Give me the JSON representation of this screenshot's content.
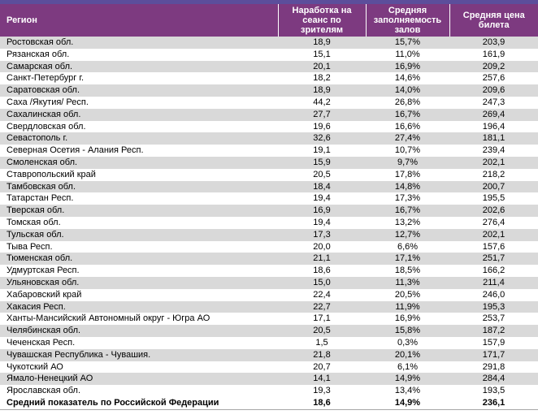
{
  "chart_data": {
    "type": "table",
    "title": "",
    "columns": [
      "Регион",
      "Наработка на сеанс по зрителям",
      "Средняя заполняемость залов",
      "Средняя цена билета"
    ],
    "rows": [
      [
        "Ростовская обл.",
        "18,9",
        "15,7%",
        "203,9"
      ],
      [
        "Рязанская обл.",
        "15,1",
        "11,0%",
        "161,9"
      ],
      [
        "Самарская обл.",
        "20,1",
        "16,9%",
        "209,2"
      ],
      [
        "Санкт-Петербург г.",
        "18,2",
        "14,6%",
        "257,6"
      ],
      [
        "Саратовская обл.",
        "18,9",
        "14,0%",
        "209,6"
      ],
      [
        "Саха /Якутия/ Респ.",
        "44,2",
        "26,8%",
        "247,3"
      ],
      [
        "Сахалинская обл.",
        "27,7",
        "16,7%",
        "269,4"
      ],
      [
        "Свердловская обл.",
        "19,6",
        "16,6%",
        "196,4"
      ],
      [
        "Севастополь г.",
        "32,6",
        "27,4%",
        "181,1"
      ],
      [
        "Северная Осетия - Алания Респ.",
        "19,1",
        "10,7%",
        "239,4"
      ],
      [
        "Смоленская обл.",
        "15,9",
        "9,7%",
        "202,1"
      ],
      [
        "Ставропольский край",
        "20,5",
        "17,8%",
        "218,2"
      ],
      [
        "Тамбовская обл.",
        "18,4",
        "14,8%",
        "200,7"
      ],
      [
        "Татарстан Респ.",
        "19,4",
        "17,3%",
        "195,5"
      ],
      [
        "Тверская обл.",
        "16,9",
        "16,7%",
        "202,6"
      ],
      [
        "Томская обл.",
        "19,4",
        "13,2%",
        "276,4"
      ],
      [
        "Тульская обл.",
        "17,3",
        "12,7%",
        "202,1"
      ],
      [
        "Тыва Респ.",
        "20,0",
        "6,6%",
        "157,6"
      ],
      [
        "Тюменская обл.",
        "21,1",
        "17,1%",
        "251,7"
      ],
      [
        "Удмуртская Респ.",
        "18,6",
        "18,5%",
        "166,2"
      ],
      [
        "Ульяновская обл.",
        "15,0",
        "11,3%",
        "211,4"
      ],
      [
        "Хабаровский край",
        "22,4",
        "20,5%",
        "246,0"
      ],
      [
        "Хакасия Респ.",
        "22,7",
        "11,9%",
        "195,3"
      ],
      [
        "Ханты-Мансийский Автономный округ - Югра АО",
        "17,1",
        "16,9%",
        "253,7"
      ],
      [
        "Челябинская обл.",
        "20,5",
        "15,8%",
        "187,2"
      ],
      [
        "Чеченская Респ.",
        "1,5",
        "0,3%",
        "157,9"
      ],
      [
        "Чувашская Республика - Чувашия.",
        "21,8",
        "20,1%",
        "171,7"
      ],
      [
        "Чукотский АО",
        "20,7",
        "6,1%",
        "291,8"
      ],
      [
        "Ямало-Ненецкий АО",
        "14,1",
        "14,9%",
        "284,4"
      ],
      [
        "Ярославская обл.",
        "19,3",
        "13,4%",
        "193,5"
      ]
    ],
    "summary": [
      "Средний показатель по Российской Федерации",
      "18,6",
      "14,9%",
      "236,1"
    ],
    "layout": {
      "striped": true,
      "stripe_color": "#D9D9D9",
      "header_bg": "#7D3A80",
      "top_accent_bar": "#5C4E9B",
      "header_text_color": "#FFFFFF"
    }
  }
}
